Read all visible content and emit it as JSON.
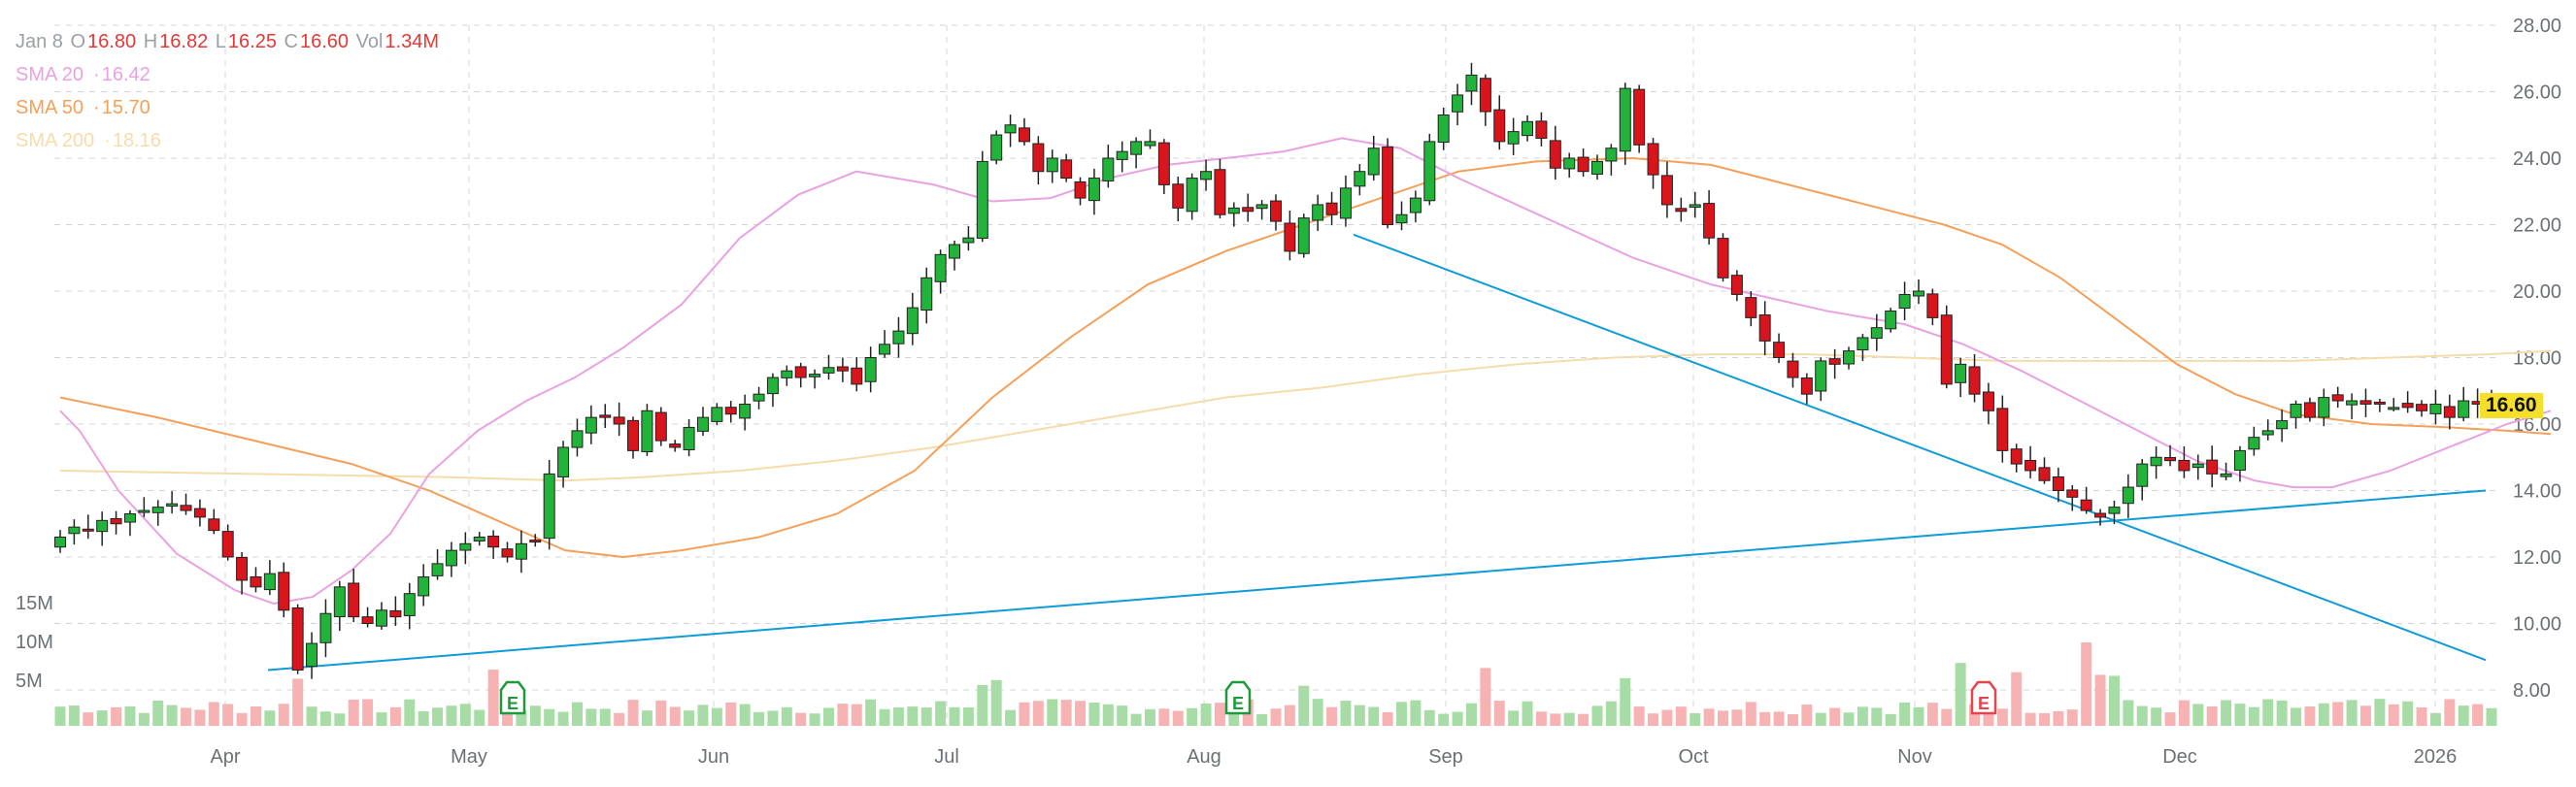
{
  "legend": {
    "date": "Jan 8",
    "open_label": "O",
    "open": "16.80",
    "high_label": "H",
    "high": "16.82",
    "low_label": "L",
    "low": "16.25",
    "close_label": "C",
    "close": "16.60",
    "vol_label": "Vol",
    "vol": "1.34M",
    "sma20_label": "SMA 20",
    "sma20": "16.42",
    "sma50_label": "SMA 50",
    "sma50": "15.70",
    "sma200_label": "SMA 200",
    "sma200": "18.16"
  },
  "last_price": "16.60",
  "colors": {
    "up": "#22b33a",
    "down": "#d8141c",
    "vol_up": "#a8dca6",
    "vol_down": "#f7b3b3",
    "sma20": "#e9a2e1",
    "sma50": "#f5a05a",
    "sma200": "#f6dcaa",
    "trend": "#0f9bd7",
    "earnings": "#1e9a3c",
    "earnings_down": "#e2454c",
    "price_tag": "#f4df2a"
  },
  "chart_data": {
    "type": "candlestick",
    "y_axis": {
      "ticks": [
        "28.00",
        "26.00",
        "24.00",
        "22.00",
        "20.00",
        "18.00",
        "16.00",
        "14.00",
        "12.00",
        "10.00",
        "8.00"
      ],
      "range": [
        7.0,
        28.3
      ]
    },
    "volume_axis": {
      "ticks": [
        "15M",
        "10M",
        "5M"
      ]
    },
    "x_axis": {
      "ticks": [
        "Apr",
        "May",
        "Jun",
        "Jul",
        "Aug",
        "Sep",
        "Oct",
        "Nov",
        "Dec",
        "2026"
      ]
    },
    "grid": true,
    "earnings_markers": [
      {
        "label": "E",
        "date": "May 7"
      },
      {
        "label": "E",
        "date": "Aug 6"
      },
      {
        "label": "E",
        "date": "Nov 5"
      }
    ],
    "closes": [
      12.6,
      12.9,
      12.8,
      13.1,
      13.0,
      13.3,
      13.4,
      13.5,
      13.6,
      13.4,
      13.2,
      12.8,
      12.0,
      11.3,
      11.1,
      11.5,
      10.4,
      8.6,
      9.4,
      10.3,
      11.1,
      10.2,
      10.0,
      10.4,
      10.2,
      10.9,
      11.4,
      11.8,
      12.2,
      12.4,
      12.6,
      12.3,
      12.0,
      12.4,
      12.5,
      14.5,
      15.3,
      15.8,
      16.2,
      16.2,
      16.0,
      15.2,
      16.4,
      15.5,
      15.3,
      15.9,
      16.2,
      16.5,
      16.3,
      16.6,
      16.9,
      17.4,
      17.6,
      17.4,
      17.5,
      17.7,
      17.6,
      17.2,
      18.0,
      18.4,
      18.8,
      19.5,
      20.4,
      21.1,
      21.4,
      21.6,
      23.9,
      24.7,
      25.0,
      24.5,
      23.6,
      24.0,
      23.4,
      22.8,
      23.4,
      24.0,
      24.2,
      24.5,
      24.5,
      23.2,
      22.5,
      23.4,
      23.6,
      22.3,
      22.5,
      22.4,
      22.6,
      22.1,
      21.2,
      22.2,
      22.6,
      22.3,
      23.1,
      23.6,
      24.3,
      22.0,
      22.3,
      22.8,
      24.5,
      25.3,
      25.9,
      26.5,
      25.4,
      24.5,
      24.8,
      25.1,
      24.6,
      23.7,
      24.0,
      23.6,
      23.9,
      24.3,
      26.1,
      24.4,
      23.5,
      22.6,
      22.4,
      22.6,
      21.6,
      20.4,
      19.9,
      19.2,
      18.5,
      18.0,
      17.4,
      16.9,
      17.9,
      17.8,
      18.2,
      18.6,
      18.9,
      19.4,
      19.9,
      20.0,
      19.2,
      17.2,
      17.8,
      16.9,
      16.4,
      15.2,
      14.8,
      14.6,
      14.3,
      14.0,
      13.8,
      13.4,
      13.2,
      13.5,
      14.1,
      14.8,
      15.0,
      14.9,
      14.6,
      14.8,
      14.5,
      14.5,
      15.2,
      15.6,
      15.8,
      16.1,
      16.6,
      16.2,
      16.8,
      16.7,
      16.7,
      16.6,
      16.6,
      16.5,
      16.5,
      16.4,
      16.6,
      16.2,
      16.7,
      16.6,
      16.6
    ],
    "sma20": [
      [
        0,
        16.4
      ],
      [
        20,
        15.8
      ],
      [
        60,
        14.0
      ],
      [
        120,
        12.1
      ],
      [
        180,
        11.0
      ],
      [
        220,
        10.6
      ],
      [
        260,
        10.8
      ],
      [
        300,
        11.6
      ],
      [
        340,
        12.7
      ],
      [
        380,
        14.5
      ],
      [
        430,
        15.8
      ],
      [
        480,
        16.7
      ],
      [
        530,
        17.4
      ],
      [
        580,
        18.3
      ],
      [
        640,
        19.6
      ],
      [
        700,
        21.6
      ],
      [
        760,
        22.9
      ],
      [
        820,
        23.6
      ],
      [
        900,
        23.2
      ],
      [
        960,
        22.7
      ],
      [
        1020,
        22.8
      ],
      [
        1080,
        23.4
      ],
      [
        1140,
        23.8
      ],
      [
        1200,
        24.0
      ],
      [
        1260,
        24.2
      ],
      [
        1320,
        24.6
      ],
      [
        1380,
        24.3
      ],
      [
        1440,
        23.4
      ],
      [
        1500,
        22.6
      ],
      [
        1560,
        21.8
      ],
      [
        1620,
        21.0
      ],
      [
        1700,
        20.2
      ],
      [
        1760,
        19.8
      ],
      [
        1820,
        19.4
      ],
      [
        1900,
        19.0
      ],
      [
        1960,
        18.4
      ],
      [
        2020,
        17.6
      ],
      [
        2080,
        16.7
      ],
      [
        2140,
        15.8
      ],
      [
        2200,
        14.9
      ],
      [
        2260,
        14.3
      ],
      [
        2300,
        14.1
      ],
      [
        2340,
        14.1
      ],
      [
        2400,
        14.6
      ],
      [
        2460,
        15.3
      ],
      [
        2520,
        16.0
      ],
      [
        2565,
        16.4
      ]
    ],
    "sma50": [
      [
        0,
        16.8
      ],
      [
        100,
        16.2
      ],
      [
        200,
        15.5
      ],
      [
        300,
        14.8
      ],
      [
        380,
        14.0
      ],
      [
        450,
        13.1
      ],
      [
        520,
        12.2
      ],
      [
        580,
        12.0
      ],
      [
        640,
        12.2
      ],
      [
        720,
        12.6
      ],
      [
        800,
        13.3
      ],
      [
        880,
        14.6
      ],
      [
        960,
        16.8
      ],
      [
        1040,
        18.6
      ],
      [
        1120,
        20.2
      ],
      [
        1200,
        21.2
      ],
      [
        1280,
        22.0
      ],
      [
        1360,
        22.8
      ],
      [
        1440,
        23.6
      ],
      [
        1520,
        23.9
      ],
      [
        1620,
        24.0
      ],
      [
        1700,
        23.8
      ],
      [
        1780,
        23.2
      ],
      [
        1860,
        22.6
      ],
      [
        1940,
        22.0
      ],
      [
        2000,
        21.4
      ],
      [
        2060,
        20.4
      ],
      [
        2120,
        19.1
      ],
      [
        2180,
        17.8
      ],
      [
        2240,
        16.9
      ],
      [
        2300,
        16.3
      ],
      [
        2380,
        16.0
      ],
      [
        2460,
        15.9
      ],
      [
        2520,
        15.8
      ],
      [
        2565,
        15.7
      ]
    ],
    "sma200": [
      [
        0,
        14.6
      ],
      [
        200,
        14.5
      ],
      [
        400,
        14.4
      ],
      [
        520,
        14.3
      ],
      [
        600,
        14.4
      ],
      [
        700,
        14.6
      ],
      [
        800,
        14.9
      ],
      [
        900,
        15.3
      ],
      [
        1000,
        15.8
      ],
      [
        1100,
        16.3
      ],
      [
        1200,
        16.8
      ],
      [
        1300,
        17.1
      ],
      [
        1400,
        17.5
      ],
      [
        1500,
        17.8
      ],
      [
        1600,
        18.0
      ],
      [
        1700,
        18.1
      ],
      [
        1800,
        18.1
      ],
      [
        1900,
        18.0
      ],
      [
        2000,
        17.9
      ],
      [
        2100,
        17.9
      ],
      [
        2200,
        17.9
      ],
      [
        2300,
        17.9
      ],
      [
        2400,
        18.0
      ],
      [
        2500,
        18.1
      ],
      [
        2565,
        18.2
      ]
    ],
    "trendlines": [
      {
        "from": [
          "Apr 3",
          8.6
        ],
        "to": [
          "Jan 12",
          14.0
        ]
      },
      {
        "from": [
          "Aug 18",
          21.7
        ],
        "to": [
          "Jan 12",
          8.9
        ]
      }
    ]
  }
}
